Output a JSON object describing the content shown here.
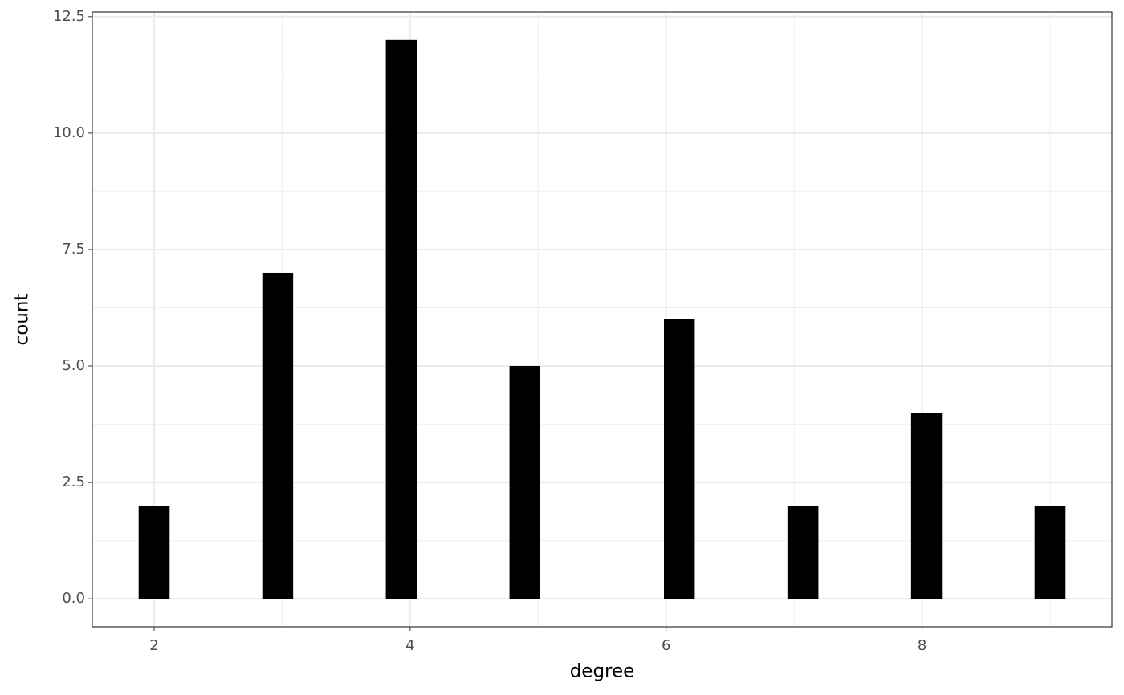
{
  "chart_data": {
    "type": "histogram",
    "x_label": "degree",
    "y_label": "count",
    "bins": [
      1.879,
      2.121,
      2.362,
      2.603,
      2.845,
      3.086,
      3.328,
      3.569,
      3.81,
      4.052,
      4.293,
      4.534,
      4.776,
      5.017,
      5.259,
      5.5,
      5.741,
      5.983,
      6.224,
      6.466,
      6.707,
      6.948,
      7.19,
      7.431,
      7.672,
      7.914,
      8.155,
      8.397,
      8.638,
      8.879,
      9.121
    ],
    "values": [
      2,
      0,
      0,
      0,
      7,
      0,
      0,
      0,
      12,
      0,
      0,
      0,
      5,
      0,
      0,
      0,
      0,
      6,
      0,
      0,
      0,
      2,
      0,
      0,
      0,
      4,
      0,
      0,
      0,
      2
    ],
    "color": "#000000",
    "xlim": [
      1.517,
      9.483
    ],
    "xticks": [
      2,
      4,
      6,
      8
    ],
    "ylim": [
      -0.6,
      12.6
    ],
    "yticks": [
      {
        "value": 0,
        "label": "0.0"
      },
      2.5,
      {
        "value": 5,
        "label": "5.0"
      },
      7.5,
      {
        "value": 10,
        "label": "10.0"
      },
      12.5
    ],
    "grid": true
  }
}
